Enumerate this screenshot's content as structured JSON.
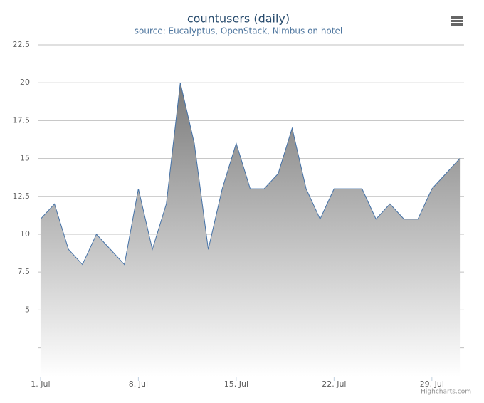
{
  "chart_data": {
    "type": "area",
    "title": "countusers (daily)",
    "subtitle": "source: Eucalyptus, OpenStack, Nimbus on hotel",
    "credits": "Highcharts.com",
    "x": [
      1,
      2,
      3,
      4,
      5,
      6,
      7,
      8,
      9,
      10,
      11,
      12,
      13,
      14,
      15,
      16,
      17,
      18,
      19,
      20,
      21,
      22,
      23,
      24,
      25,
      26,
      27,
      28,
      29,
      30,
      31
    ],
    "series": [
      {
        "name": "countusers",
        "color": "#4572a7",
        "values": [
          11,
          12,
          9,
          8,
          10,
          9,
          8,
          13,
          9,
          12,
          20,
          16,
          9,
          13,
          16,
          13,
          13,
          14,
          17,
          13,
          11,
          13,
          13,
          13,
          11,
          12,
          11,
          11,
          13,
          14,
          15
        ]
      }
    ],
    "xlim": [
      0.8,
      31.3
    ],
    "xticks": [
      {
        "value": 1,
        "label": "1. Jul"
      },
      {
        "value": 8,
        "label": "8. Jul"
      },
      {
        "value": 15,
        "label": "15. Jul"
      },
      {
        "value": 22,
        "label": "22. Jul"
      },
      {
        "value": 29,
        "label": "29. Jul"
      }
    ],
    "ylim": [
      0.6,
      22.5
    ],
    "yticks": [
      5,
      7.5,
      10,
      12.5,
      15,
      17.5,
      20,
      22.5
    ],
    "y_unlabeled_gridlines": [
      2.5
    ],
    "grid": true
  }
}
